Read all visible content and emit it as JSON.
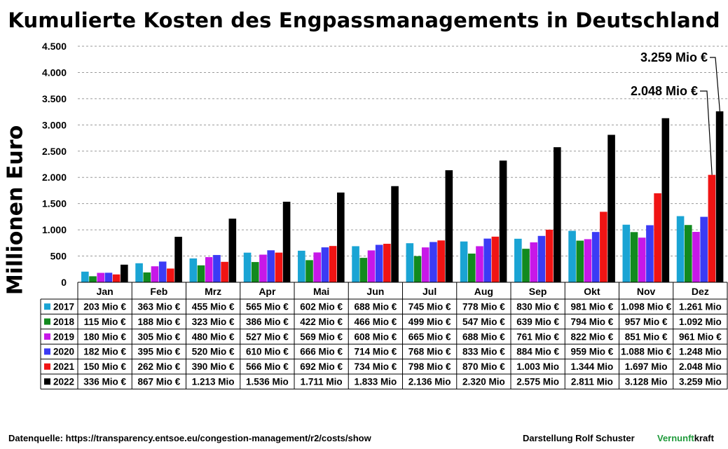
{
  "chart_data": {
    "type": "bar",
    "title": "Kumulierte Kosten des Engpassmanagements in Deutschland",
    "ylabel": "Millionen Euro",
    "xlabel": "",
    "ylim": [
      0,
      4500
    ],
    "yticks": [
      0,
      500,
      1000,
      1500,
      2000,
      2500,
      3000,
      3500,
      4000,
      4500
    ],
    "ytick_labels": [
      "0",
      "500",
      "1.000",
      "1.500",
      "2.000",
      "2.500",
      "3.000",
      "3.500",
      "4.000",
      "4.500"
    ],
    "grid": "horizontal dashed",
    "legend": "in data table below chart",
    "categories": [
      "Jan",
      "Feb",
      "Mrz",
      "Apr",
      "Mai",
      "Jun",
      "Jul",
      "Aug",
      "Sep",
      "Okt",
      "Nov",
      "Dez"
    ],
    "series": [
      {
        "name": "2017",
        "color": "#1aa4d4",
        "values": [
          203,
          363,
          455,
          565,
          602,
          688,
          745,
          778,
          830,
          981,
          1098,
          1261
        ],
        "labels": [
          "203 Mio €",
          "363 Mio €",
          "455 Mio €",
          "565 Mio €",
          "602 Mio €",
          "688 Mio €",
          "745 Mio €",
          "778 Mio €",
          "830 Mio €",
          "981 Mio €",
          "1.098 Mio €",
          "1.261 Mio"
        ]
      },
      {
        "name": "2018",
        "color": "#128a1e",
        "values": [
          115,
          188,
          323,
          386,
          422,
          466,
          499,
          547,
          639,
          794,
          957,
          1092
        ],
        "labels": [
          "115 Mio €",
          "188 Mio €",
          "323 Mio €",
          "386 Mio €",
          "422 Mio €",
          "466 Mio €",
          "499 Mio €",
          "547 Mio €",
          "639 Mio €",
          "794 Mio €",
          "957 Mio €",
          "1.092 Mio"
        ]
      },
      {
        "name": "2019",
        "color": "#c718e8",
        "values": [
          180,
          305,
          480,
          527,
          569,
          608,
          665,
          688,
          761,
          822,
          851,
          961
        ],
        "labels": [
          "180 Mio €",
          "305 Mio €",
          "480 Mio €",
          "527 Mio €",
          "569 Mio €",
          "608 Mio €",
          "665 Mio €",
          "688 Mio €",
          "761 Mio €",
          "822 Mio €",
          "851 Mio €",
          "961 Mio €"
        ]
      },
      {
        "name": "2020",
        "color": "#3b3bf5",
        "values": [
          182,
          395,
          520,
          610,
          666,
          714,
          768,
          833,
          884,
          959,
          1088,
          1248
        ],
        "labels": [
          "182 Mio €",
          "395 Mio €",
          "520 Mio €",
          "610 Mio €",
          "666 Mio €",
          "714 Mio €",
          "768 Mio €",
          "833 Mio €",
          "884 Mio €",
          "959 Mio €",
          "1.088 Mio €",
          "1.248 Mio"
        ]
      },
      {
        "name": "2021",
        "color": "#f01414",
        "values": [
          150,
          262,
          390,
          566,
          692,
          734,
          798,
          870,
          1003,
          1344,
          1697,
          2048
        ],
        "labels": [
          "150 Mio €",
          "262 Mio €",
          "390 Mio €",
          "566 Mio €",
          "692 Mio €",
          "734 Mio €",
          "798 Mio €",
          "870 Mio €",
          "1.003 Mio",
          "1.344 Mio",
          "1.697 Mio",
          "2.048 Mio"
        ]
      },
      {
        "name": "2022",
        "color": "#000000",
        "values": [
          336,
          867,
          1213,
          1536,
          1711,
          1833,
          2136,
          2320,
          2575,
          2811,
          3128,
          3259
        ],
        "labels": [
          "336 Mio €",
          "867 Mio €",
          "1.213 Mio",
          "1.536 Mio",
          "1.711 Mio",
          "1.833 Mio",
          "2.136 Mio",
          "2.320 Mio",
          "2.575 Mio",
          "2.811 Mio",
          "3.128 Mio",
          "3.259 Mio"
        ]
      }
    ],
    "annotations": [
      {
        "text": "3.259 Mio €",
        "category": "Dez",
        "series": "2022"
      },
      {
        "text": "2.048 Mio €",
        "category": "Dez",
        "series": "2021"
      }
    ]
  },
  "footer": {
    "source": "Datenquelle:  https://transparency.entsoe.eu/congestion-management/r2/costs/show",
    "credit": "Darstellung  Rolf Schuster",
    "brand_part1": "Vernunft",
    "brand_part2": "kraft",
    "brand_color": "#1f9a3b"
  }
}
